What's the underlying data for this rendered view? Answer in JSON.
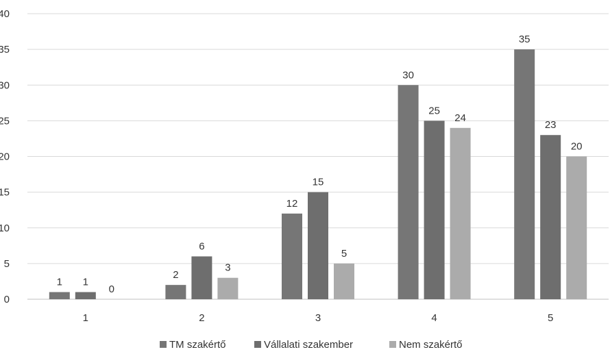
{
  "chart_data": {
    "type": "bar",
    "title": "",
    "xlabel": "",
    "ylabel": "",
    "categories": [
      "1",
      "2",
      "3",
      "4",
      "5"
    ],
    "ylim": [
      0,
      40
    ],
    "yticks": [
      0,
      5,
      10,
      15,
      20,
      25,
      30,
      35,
      40
    ],
    "grid": true,
    "legend_position": "bottom",
    "series": [
      {
        "name": "TM szakértő",
        "color": "#767676",
        "values": [
          1,
          2,
          12,
          30,
          35
        ]
      },
      {
        "name": "Vállalati szakember",
        "color": "#6e6e6e",
        "values": [
          1,
          6,
          15,
          25,
          23
        ]
      },
      {
        "name": "Nem szakértő",
        "color": "#ababab",
        "values": [
          0,
          3,
          5,
          24,
          20
        ]
      }
    ]
  }
}
